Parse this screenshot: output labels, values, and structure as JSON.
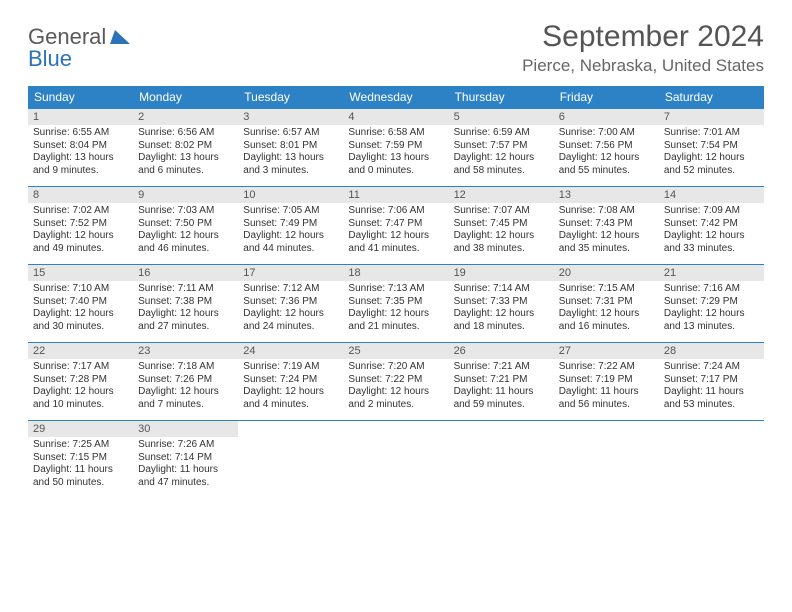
{
  "logo": {
    "general": "General",
    "blue": "Blue"
  },
  "title": "September 2024",
  "location": "Pierce, Nebraska, United States",
  "colors": {
    "header_bg": "#2d82c6",
    "header_text": "#ffffff",
    "daynum_bg": "#e7e7e7",
    "border": "#2d82c6",
    "logo_gray": "#5a5a5a",
    "logo_blue": "#2d73b8"
  },
  "weekdays": [
    "Sunday",
    "Monday",
    "Tuesday",
    "Wednesday",
    "Thursday",
    "Friday",
    "Saturday"
  ],
  "days": [
    {
      "n": "1",
      "sunrise": "Sunrise: 6:55 AM",
      "sunset": "Sunset: 8:04 PM",
      "daylight": "Daylight: 13 hours and 9 minutes."
    },
    {
      "n": "2",
      "sunrise": "Sunrise: 6:56 AM",
      "sunset": "Sunset: 8:02 PM",
      "daylight": "Daylight: 13 hours and 6 minutes."
    },
    {
      "n": "3",
      "sunrise": "Sunrise: 6:57 AM",
      "sunset": "Sunset: 8:01 PM",
      "daylight": "Daylight: 13 hours and 3 minutes."
    },
    {
      "n": "4",
      "sunrise": "Sunrise: 6:58 AM",
      "sunset": "Sunset: 7:59 PM",
      "daylight": "Daylight: 13 hours and 0 minutes."
    },
    {
      "n": "5",
      "sunrise": "Sunrise: 6:59 AM",
      "sunset": "Sunset: 7:57 PM",
      "daylight": "Daylight: 12 hours and 58 minutes."
    },
    {
      "n": "6",
      "sunrise": "Sunrise: 7:00 AM",
      "sunset": "Sunset: 7:56 PM",
      "daylight": "Daylight: 12 hours and 55 minutes."
    },
    {
      "n": "7",
      "sunrise": "Sunrise: 7:01 AM",
      "sunset": "Sunset: 7:54 PM",
      "daylight": "Daylight: 12 hours and 52 minutes."
    },
    {
      "n": "8",
      "sunrise": "Sunrise: 7:02 AM",
      "sunset": "Sunset: 7:52 PM",
      "daylight": "Daylight: 12 hours and 49 minutes."
    },
    {
      "n": "9",
      "sunrise": "Sunrise: 7:03 AM",
      "sunset": "Sunset: 7:50 PM",
      "daylight": "Daylight: 12 hours and 46 minutes."
    },
    {
      "n": "10",
      "sunrise": "Sunrise: 7:05 AM",
      "sunset": "Sunset: 7:49 PM",
      "daylight": "Daylight: 12 hours and 44 minutes."
    },
    {
      "n": "11",
      "sunrise": "Sunrise: 7:06 AM",
      "sunset": "Sunset: 7:47 PM",
      "daylight": "Daylight: 12 hours and 41 minutes."
    },
    {
      "n": "12",
      "sunrise": "Sunrise: 7:07 AM",
      "sunset": "Sunset: 7:45 PM",
      "daylight": "Daylight: 12 hours and 38 minutes."
    },
    {
      "n": "13",
      "sunrise": "Sunrise: 7:08 AM",
      "sunset": "Sunset: 7:43 PM",
      "daylight": "Daylight: 12 hours and 35 minutes."
    },
    {
      "n": "14",
      "sunrise": "Sunrise: 7:09 AM",
      "sunset": "Sunset: 7:42 PM",
      "daylight": "Daylight: 12 hours and 33 minutes."
    },
    {
      "n": "15",
      "sunrise": "Sunrise: 7:10 AM",
      "sunset": "Sunset: 7:40 PM",
      "daylight": "Daylight: 12 hours and 30 minutes."
    },
    {
      "n": "16",
      "sunrise": "Sunrise: 7:11 AM",
      "sunset": "Sunset: 7:38 PM",
      "daylight": "Daylight: 12 hours and 27 minutes."
    },
    {
      "n": "17",
      "sunrise": "Sunrise: 7:12 AM",
      "sunset": "Sunset: 7:36 PM",
      "daylight": "Daylight: 12 hours and 24 minutes."
    },
    {
      "n": "18",
      "sunrise": "Sunrise: 7:13 AM",
      "sunset": "Sunset: 7:35 PM",
      "daylight": "Daylight: 12 hours and 21 minutes."
    },
    {
      "n": "19",
      "sunrise": "Sunrise: 7:14 AM",
      "sunset": "Sunset: 7:33 PM",
      "daylight": "Daylight: 12 hours and 18 minutes."
    },
    {
      "n": "20",
      "sunrise": "Sunrise: 7:15 AM",
      "sunset": "Sunset: 7:31 PM",
      "daylight": "Daylight: 12 hours and 16 minutes."
    },
    {
      "n": "21",
      "sunrise": "Sunrise: 7:16 AM",
      "sunset": "Sunset: 7:29 PM",
      "daylight": "Daylight: 12 hours and 13 minutes."
    },
    {
      "n": "22",
      "sunrise": "Sunrise: 7:17 AM",
      "sunset": "Sunset: 7:28 PM",
      "daylight": "Daylight: 12 hours and 10 minutes."
    },
    {
      "n": "23",
      "sunrise": "Sunrise: 7:18 AM",
      "sunset": "Sunset: 7:26 PM",
      "daylight": "Daylight: 12 hours and 7 minutes."
    },
    {
      "n": "24",
      "sunrise": "Sunrise: 7:19 AM",
      "sunset": "Sunset: 7:24 PM",
      "daylight": "Daylight: 12 hours and 4 minutes."
    },
    {
      "n": "25",
      "sunrise": "Sunrise: 7:20 AM",
      "sunset": "Sunset: 7:22 PM",
      "daylight": "Daylight: 12 hours and 2 minutes."
    },
    {
      "n": "26",
      "sunrise": "Sunrise: 7:21 AM",
      "sunset": "Sunset: 7:21 PM",
      "daylight": "Daylight: 11 hours and 59 minutes."
    },
    {
      "n": "27",
      "sunrise": "Sunrise: 7:22 AM",
      "sunset": "Sunset: 7:19 PM",
      "daylight": "Daylight: 11 hours and 56 minutes."
    },
    {
      "n": "28",
      "sunrise": "Sunrise: 7:24 AM",
      "sunset": "Sunset: 7:17 PM",
      "daylight": "Daylight: 11 hours and 53 minutes."
    },
    {
      "n": "29",
      "sunrise": "Sunrise: 7:25 AM",
      "sunset": "Sunset: 7:15 PM",
      "daylight": "Daylight: 11 hours and 50 minutes."
    },
    {
      "n": "30",
      "sunrise": "Sunrise: 7:26 AM",
      "sunset": "Sunset: 7:14 PM",
      "daylight": "Daylight: 11 hours and 47 minutes."
    }
  ]
}
